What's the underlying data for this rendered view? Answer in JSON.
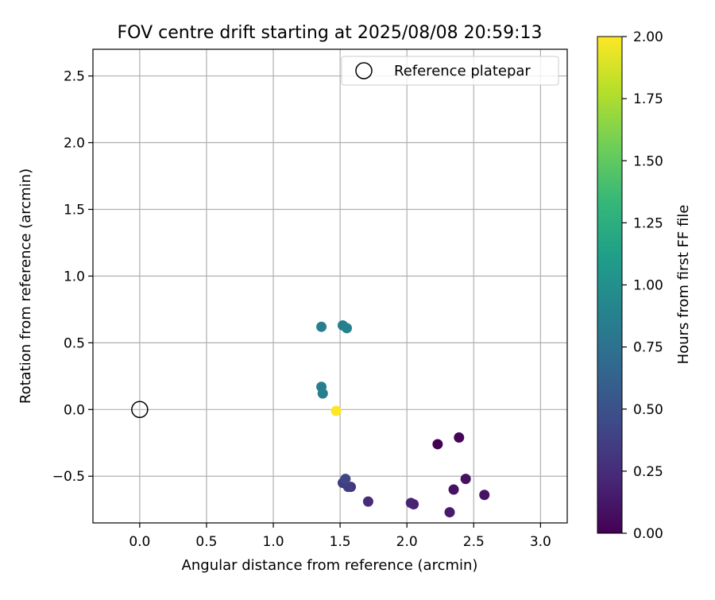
{
  "chart_data": {
    "type": "scatter",
    "title": "FOV centre drift starting at 2025/08/08 20:59:13",
    "xlabel": "Angular distance from reference (arcmin)",
    "ylabel": "Rotation from reference (arcmin)",
    "xlim": [
      -0.35,
      3.2
    ],
    "ylim": [
      -0.85,
      2.7
    ],
    "xticks": [
      0.0,
      0.5,
      1.0,
      1.5,
      2.0,
      2.5,
      3.0
    ],
    "xtick_labels": [
      "0.0",
      "0.5",
      "1.0",
      "1.5",
      "2.0",
      "2.5",
      "3.0"
    ],
    "yticks": [
      -0.5,
      0.0,
      0.5,
      1.0,
      1.5,
      2.0,
      2.5
    ],
    "ytick_labels": [
      "−0.5",
      "0.0",
      "0.5",
      "1.0",
      "1.5",
      "2.0",
      "2.5"
    ],
    "grid": true,
    "legend": {
      "position": "top-right",
      "entries": [
        "Reference platepar"
      ]
    },
    "reference": {
      "x": 0.0,
      "y": 0.0
    },
    "colorbar": {
      "label": "Hours from first FF file",
      "range": [
        0.0,
        2.0
      ],
      "ticks": [
        0.0,
        0.25,
        0.5,
        0.75,
        1.0,
        1.25,
        1.5,
        1.75,
        2.0
      ],
      "tick_labels": [
        "0.00",
        "0.25",
        "0.50",
        "0.75",
        "1.00",
        "1.25",
        "1.50",
        "1.75",
        "2.00"
      ],
      "colormap": "viridis"
    },
    "points": [
      {
        "x": 2.23,
        "y": -0.26,
        "t": 0.0
      },
      {
        "x": 2.39,
        "y": -0.21,
        "t": 0.03
      },
      {
        "x": 2.44,
        "y": -0.52,
        "t": 0.09
      },
      {
        "x": 2.35,
        "y": -0.6,
        "t": 0.09
      },
      {
        "x": 2.58,
        "y": -0.64,
        "t": 0.11
      },
      {
        "x": 2.32,
        "y": -0.77,
        "t": 0.14
      },
      {
        "x": 2.05,
        "y": -0.71,
        "t": 0.19
      },
      {
        "x": 2.03,
        "y": -0.7,
        "t": 0.2
      },
      {
        "x": 1.71,
        "y": -0.69,
        "t": 0.25
      },
      {
        "x": 1.58,
        "y": -0.58,
        "t": 0.3
      },
      {
        "x": 1.56,
        "y": -0.58,
        "t": 0.35
      },
      {
        "x": 1.52,
        "y": -0.55,
        "t": 0.35
      },
      {
        "x": 1.54,
        "y": -0.52,
        "t": 0.42
      },
      {
        "x": 1.37,
        "y": 0.12,
        "t": 0.85
      },
      {
        "x": 1.36,
        "y": 0.17,
        "t": 0.86
      },
      {
        "x": 1.36,
        "y": 0.62,
        "t": 0.86
      },
      {
        "x": 1.52,
        "y": 0.63,
        "t": 0.86
      },
      {
        "x": 1.55,
        "y": 0.61,
        "t": 0.88
      },
      {
        "x": 1.47,
        "y": -0.01,
        "t": 2.0
      }
    ]
  }
}
